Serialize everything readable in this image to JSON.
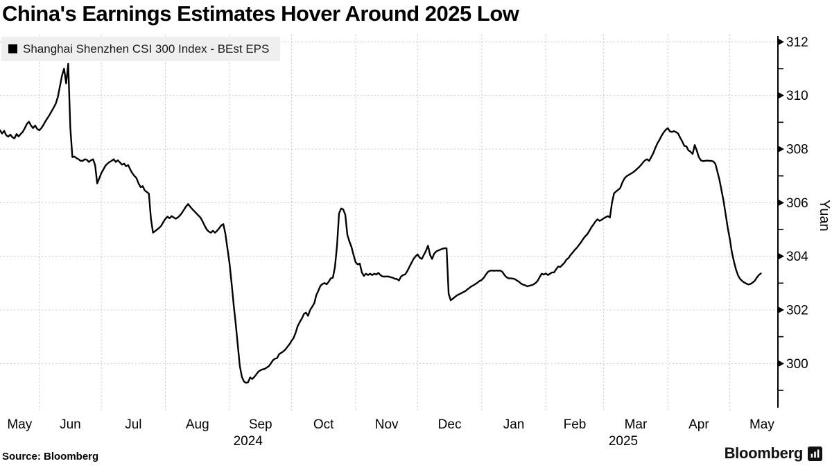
{
  "title": "China's Earnings Estimates Hover Around 2025 Low",
  "legend": {
    "label": "Shanghai Shenzhen CSI 300 Index - BEst EPS",
    "marker_color": "#000000"
  },
  "source": "Source: Bloomberg",
  "branding": {
    "logo_text": "Bloomberg",
    "logo_icon": "bar-chart-bubble-icon"
  },
  "axes": {
    "y": {
      "title": "Yuan",
      "major_ticks": [
        312,
        310,
        308,
        306,
        304,
        302,
        300
      ],
      "minor_ticks": [
        311,
        309,
        307,
        305,
        303,
        301,
        299
      ]
    },
    "x": {
      "month_labels": [
        "May",
        "Jun",
        "Jul",
        "Aug",
        "Sep",
        "Oct",
        "Nov",
        "Dec",
        "Jan",
        "Feb",
        "Mar",
        "Apr",
        "May"
      ],
      "year_labels": [
        {
          "text": "2024",
          "under_month_index": 4
        },
        {
          "text": "2025",
          "under_month_index": 10
        }
      ]
    }
  },
  "chart_data": {
    "type": "line",
    "title": "China's Earnings Estimates Hover Around 2025 Low",
    "ylabel": "Yuan",
    "ylim": [
      298.9,
      312.4
    ],
    "grid": true,
    "legend_position": "top-left",
    "x_unit": "days since 2024-05-13",
    "x_step": 1,
    "month_start_days": [
      19,
      49,
      80,
      111,
      141,
      172,
      202,
      233,
      264,
      292,
      323,
      353
    ],
    "series": [
      {
        "name": "Shanghai Shenzhen CSI 300 Index - BEst EPS",
        "color": "#000000",
        "values": [
          308.7,
          308.58,
          308.68,
          308.52,
          308.46,
          308.54,
          308.44,
          308.4,
          308.56,
          308.47,
          308.56,
          308.64,
          308.78,
          308.94,
          309.02,
          308.88,
          308.78,
          308.88,
          308.75,
          308.7,
          308.78,
          308.9,
          309.04,
          309.16,
          309.28,
          309.42,
          309.55,
          309.7,
          309.95,
          310.35,
          310.75,
          311.0,
          310.45,
          311.18,
          308.8,
          307.7,
          307.72,
          307.66,
          307.62,
          307.56,
          307.56,
          307.62,
          307.6,
          307.52,
          307.58,
          307.62,
          307.4,
          306.72,
          306.9,
          307.1,
          307.24,
          307.38,
          307.46,
          307.52,
          307.56,
          307.62,
          307.52,
          307.58,
          307.5,
          307.42,
          307.46,
          307.36,
          307.4,
          307.24,
          307.1,
          307.0,
          306.92,
          306.72,
          306.58,
          306.62,
          306.46,
          306.4,
          306.34,
          305.4,
          304.88,
          304.94,
          305.0,
          305.06,
          305.14,
          305.28,
          305.4,
          305.48,
          305.42,
          305.5,
          305.45,
          305.4,
          305.45,
          305.52,
          305.62,
          305.74,
          305.86,
          305.95,
          305.85,
          305.76,
          305.68,
          305.6,
          305.52,
          305.44,
          305.3,
          305.14,
          305.0,
          304.92,
          304.88,
          304.95,
          304.88,
          304.95,
          305.05,
          305.15,
          305.2,
          304.85,
          304.3,
          303.75,
          303.0,
          302.2,
          301.5,
          300.7,
          299.9,
          299.5,
          299.33,
          299.28,
          299.3,
          299.48,
          299.42,
          299.5,
          299.6,
          299.7,
          299.75,
          299.78,
          299.8,
          299.85,
          299.9,
          300.0,
          300.12,
          300.18,
          300.2,
          300.35,
          300.4,
          300.45,
          300.52,
          300.62,
          300.72,
          300.85,
          300.95,
          301.15,
          301.4,
          301.55,
          301.68,
          301.85,
          301.9,
          301.78,
          302.0,
          302.12,
          302.25,
          302.55,
          302.72,
          302.9,
          302.97,
          303.0,
          302.96,
          303.05,
          303.18,
          303.2,
          303.6,
          304.4,
          305.6,
          305.78,
          305.75,
          305.55,
          304.8,
          304.55,
          304.35,
          304.05,
          303.78,
          303.7,
          303.73,
          303.4,
          303.27,
          303.35,
          303.3,
          303.35,
          303.3,
          303.35,
          303.32,
          303.38,
          303.3,
          303.25,
          303.24,
          303.25,
          303.24,
          303.22,
          303.2,
          303.16,
          303.15,
          303.1,
          303.25,
          303.3,
          303.33,
          303.45,
          303.6,
          303.75,
          303.9,
          304.0,
          304.07,
          303.95,
          303.9,
          304.05,
          304.2,
          304.4,
          304.05,
          303.9,
          304.1,
          304.18,
          304.22,
          304.25,
          304.28,
          304.3,
          304.3,
          302.6,
          302.36,
          302.42,
          302.48,
          302.54,
          302.58,
          302.62,
          302.66,
          302.7,
          302.76,
          302.82,
          302.88,
          302.92,
          302.97,
          303.02,
          303.08,
          303.12,
          303.2,
          303.32,
          303.42,
          303.46,
          303.47,
          303.46,
          303.47,
          303.46,
          303.47,
          303.42,
          303.3,
          303.22,
          303.18,
          303.18,
          303.17,
          303.15,
          303.1,
          303.05,
          302.98,
          302.94,
          302.92,
          302.88,
          302.9,
          302.92,
          302.95,
          303.0,
          303.08,
          303.22,
          303.35,
          303.32,
          303.36,
          303.3,
          303.35,
          303.4,
          303.4,
          303.52,
          303.62,
          303.6,
          303.68,
          303.76,
          303.88,
          303.94,
          304.05,
          304.14,
          304.24,
          304.32,
          304.42,
          304.52,
          304.64,
          304.74,
          304.82,
          304.94,
          305.08,
          305.18,
          305.3,
          305.38,
          305.32,
          305.36,
          305.42,
          305.46,
          305.5,
          305.45,
          306.0,
          306.35,
          306.42,
          306.48,
          306.55,
          306.75,
          306.9,
          306.98,
          307.03,
          307.08,
          307.12,
          307.18,
          307.25,
          307.32,
          307.4,
          307.5,
          307.58,
          307.62,
          307.56,
          307.7,
          307.85,
          308.05,
          308.22,
          308.35,
          308.5,
          308.62,
          308.72,
          308.78,
          308.66,
          308.64,
          308.67,
          308.63,
          308.58,
          308.42,
          308.28,
          308.12,
          308.1,
          307.95,
          307.9,
          307.82,
          308.15,
          307.95,
          307.7,
          307.58,
          307.55,
          307.56,
          307.57,
          307.56,
          307.56,
          307.54,
          307.45,
          307.15,
          306.85,
          306.45,
          306.05,
          305.55,
          305.05,
          304.65,
          304.15,
          303.8,
          303.5,
          303.28,
          303.15,
          303.08,
          303.02,
          302.98,
          302.95,
          302.97,
          303.02,
          303.08,
          303.2,
          303.3,
          303.36
        ]
      }
    ]
  },
  "style": {
    "line_color": "#000000",
    "grid_color": "#c9c9c9",
    "axis_color": "#000000",
    "legend_bg": "#efefef",
    "background": "#ffffff"
  }
}
